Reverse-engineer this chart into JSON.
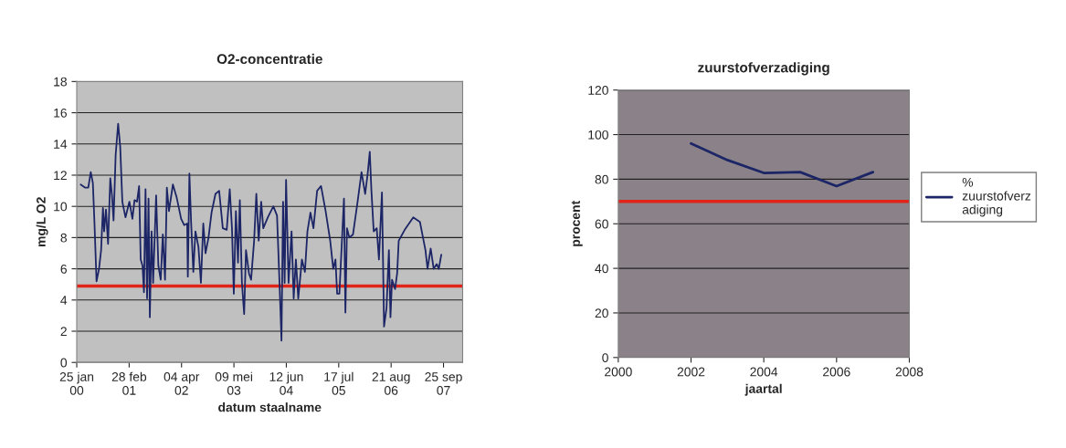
{
  "chart_data": [
    {
      "type": "line",
      "title": "O2-concentratie",
      "xlabel": "datum staalname",
      "ylabel": "mg/L O2",
      "x": [
        "2000-02-24",
        "2000-03-30",
        "2000-04-22",
        "2000-05-11",
        "2000-05-27",
        "2000-06-08",
        "2000-06-24",
        "2000-07-13",
        "2000-07-29",
        "2000-08-12",
        "2000-08-21",
        "2000-09-04",
        "2000-09-20",
        "2000-10-07",
        "2000-10-20",
        "2000-11-01",
        "2000-11-17",
        "2000-12-06",
        "2000-12-22",
        "2001-01-07",
        "2001-01-31",
        "2001-03-02",
        "2001-03-25",
        "2001-04-10",
        "2001-04-29",
        "2001-05-15",
        "2001-05-27",
        "2001-06-10",
        "2001-06-21",
        "2001-07-03",
        "2001-07-15",
        "2001-07-26",
        "2001-08-05",
        "2001-08-18",
        "2001-08-30",
        "2001-09-22",
        "2001-10-09",
        "2001-10-27",
        "2001-11-12",
        "2001-11-29",
        "2001-12-13",
        "2001-12-29",
        "2002-01-28",
        "2002-02-25",
        "2002-04-01",
        "2002-04-24",
        "2002-05-17",
        "2002-05-22",
        "2002-06-03",
        "2002-06-16",
        "2002-07-03",
        "2002-07-19",
        "2002-08-11",
        "2002-08-30",
        "2002-09-17",
        "2002-10-04",
        "2002-10-27",
        "2002-11-19",
        "2002-12-19",
        "2003-01-16",
        "2003-02-13",
        "2003-03-15",
        "2003-04-07",
        "2003-04-24",
        "2003-05-08",
        "2003-05-24",
        "2003-06-09",
        "2003-06-23",
        "2003-07-09",
        "2003-07-26",
        "2003-08-09",
        "2003-09-01",
        "2003-09-17",
        "2003-10-10",
        "2003-10-27",
        "2003-11-14",
        "2003-12-03",
        "2003-12-19",
        "2004-01-23",
        "2004-03-05",
        "2004-04-02",
        "2004-04-20",
        "2004-05-06",
        "2004-05-18",
        "2004-05-30",
        "2004-06-10",
        "2004-06-29",
        "2004-07-22",
        "2004-08-07",
        "2004-08-24",
        "2004-09-11",
        "2004-10-09",
        "2004-11-01",
        "2004-11-20",
        "2004-12-13",
        "2005-01-05",
        "2005-02-02",
        "2005-03-04",
        "2005-04-08",
        "2005-05-13",
        "2005-06-05",
        "2005-06-22",
        "2005-07-05",
        "2005-07-22",
        "2005-08-07",
        "2005-08-26",
        "2005-09-06",
        "2005-09-18",
        "2005-10-06",
        "2005-11-03",
        "2005-12-08",
        "2006-01-07",
        "2006-02-04",
        "2006-02-23",
        "2006-03-11",
        "2006-03-23",
        "2006-04-10",
        "2006-05-03",
        "2006-05-20",
        "2006-06-12",
        "2006-06-28",
        "2006-07-17",
        "2006-08-04",
        "2006-08-16",
        "2006-08-28",
        "2006-09-20",
        "2006-10-06",
        "2006-10-18",
        "2006-12-03",
        "2007-02-06",
        "2007-03-29",
        "2007-05-10",
        "2007-05-26",
        "2007-06-19",
        "2007-07-12",
        "2007-08-04",
        "2007-08-20",
        "2007-09-08"
      ],
      "series": [
        {
          "color": "#1c2566",
          "values": [
            11.4,
            11.2,
            11.2,
            12.2,
            11.5,
            9.0,
            5.2,
            6.0,
            7.2,
            9.9,
            8.4,
            9.8,
            7.6,
            11.8,
            10.7,
            9.1,
            13.3,
            15.3,
            13.8,
            10.3,
            9.3,
            10.3,
            9.2,
            10.4,
            10.3,
            11.3,
            6.6,
            6.2,
            4.5,
            11.1,
            4.1,
            10.5,
            2.9,
            8.4,
            5.1,
            10.7,
            6.2,
            5.3,
            8.2,
            5.3,
            11.2,
            9.7,
            11.4,
            10.6,
            9.2,
            8.8,
            8.9,
            5.5,
            12.1,
            9.0,
            5.8,
            8.4,
            7.4,
            5.1,
            8.9,
            7.0,
            8.0,
            9.6,
            10.8,
            11.0,
            8.6,
            8.5,
            11.1,
            8.6,
            4.4,
            9.7,
            6.4,
            10.4,
            5.1,
            3.1,
            7.2,
            5.7,
            5.3,
            7.8,
            10.8,
            7.8,
            10.3,
            8.6,
            9.3,
            10.0,
            9.4,
            5.3,
            1.4,
            10.3,
            5.1,
            11.7,
            5.1,
            8.4,
            4.1,
            6.6,
            4.1,
            6.6,
            5.8,
            8.4,
            9.6,
            8.6,
            11.0,
            11.3,
            9.7,
            7.8,
            6.0,
            6.6,
            4.4,
            4.4,
            7.2,
            10.5,
            3.2,
            8.6,
            8.0,
            8.2,
            10.3,
            12.2,
            10.8,
            12.1,
            13.5,
            11.1,
            8.4,
            8.6,
            6.6,
            10.9,
            2.3,
            3.5,
            7.2,
            2.9,
            5.3,
            4.7,
            5.7,
            7.8,
            8.5,
            9.3,
            9.0,
            7.2,
            6.0,
            7.3,
            6.0,
            6.3,
            6.0,
            6.9
          ]
        }
      ],
      "xlim": [
        "2000-01-25",
        "2008-02-18"
      ],
      "xticks": [
        {
          "value": "2000-01-25",
          "label": "25 jan\n00"
        },
        {
          "value": "2001-02-28",
          "label": "28 feb\n01"
        },
        {
          "value": "2002-04-04",
          "label": "04 apr\n02"
        },
        {
          "value": "2003-05-09",
          "label": "09 mei\n03"
        },
        {
          "value": "2004-06-12",
          "label": "12 jun\n04"
        },
        {
          "value": "2005-07-17",
          "label": "17 jul\n05"
        },
        {
          "value": "2006-08-21",
          "label": "21 aug\n06"
        },
        {
          "value": "2007-09-25",
          "label": "25 sep\n07"
        }
      ],
      "ylim": [
        0,
        18
      ],
      "yticks": [
        0,
        2,
        4,
        6,
        8,
        10,
        12,
        14,
        16,
        18
      ],
      "grid": "y",
      "legend": false,
      "ref_lines": [
        {
          "axis": "y",
          "value": 4.9,
          "color": "#e02418"
        }
      ]
    },
    {
      "type": "line",
      "title": "zuurstofverzadiging",
      "xlabel": "jaartal",
      "ylabel": "procent",
      "x": [
        2002,
        2003,
        2004,
        2005,
        2006,
        2007
      ],
      "series": [
        {
          "name": "% zuurstofverzadiging",
          "color": "#1c2566",
          "values": [
            96,
            88.6,
            82.8,
            83.2,
            76.9,
            83.2
          ]
        }
      ],
      "xlim": [
        2000,
        2008
      ],
      "xticks": [
        2000,
        2002,
        2004,
        2006,
        2008
      ],
      "ylim": [
        0,
        120
      ],
      "yticks": [
        0,
        20,
        40,
        60,
        80,
        100,
        120
      ],
      "grid": "y",
      "legend": "right",
      "ref_lines": [
        {
          "axis": "y",
          "value": 70,
          "color": "#e02418"
        }
      ]
    }
  ]
}
